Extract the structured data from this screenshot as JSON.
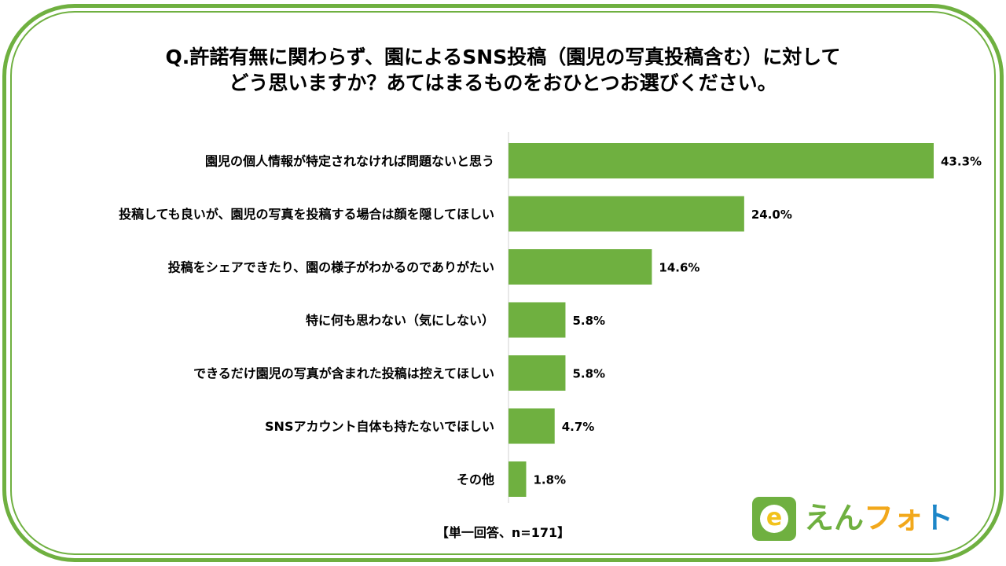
{
  "title": {
    "line1": "Q.許諾有無に関わらず、園によるSNS投稿（園児の写真投稿含む）に対して",
    "line2": "どう思いますか？あてはまるものをおひとつお選びください。"
  },
  "chart_data": {
    "type": "bar",
    "orientation": "horizontal",
    "categories": [
      "園児の個人情報が特定されなければ問題ないと思う",
      "投稿しても良いが、園児の写真を投稿する場合は顔を隠してほしい",
      "投稿をシェアできたり、園の様子がわかるのでありがたい",
      "特に何も思わない（気にしない）",
      "できるだけ園児の写真が含まれた投稿は控えてほしい",
      "SNSアカウント自体も持たないでほしい",
      "その他"
    ],
    "values": [
      43.3,
      24.0,
      14.6,
      5.8,
      5.8,
      4.7,
      1.8
    ],
    "value_labels": [
      "43.3%",
      "24.0%",
      "14.6%",
      "5.8%",
      "5.8%",
      "4.7%",
      "1.8%"
    ],
    "xlim": [
      0,
      50
    ],
    "grid": false,
    "bar_color": "#6fb040"
  },
  "footnote": "【単一回答、n=171】",
  "logo": {
    "mark_letter": "e",
    "text_a": "えん",
    "text_b": "フォ",
    "text_c": "ト"
  },
  "colors": {
    "frame": "#6fb040",
    "logo_yellow": "#f2c21b",
    "logo_orange": "#f2a81b",
    "logo_blue": "#1d86c8"
  }
}
